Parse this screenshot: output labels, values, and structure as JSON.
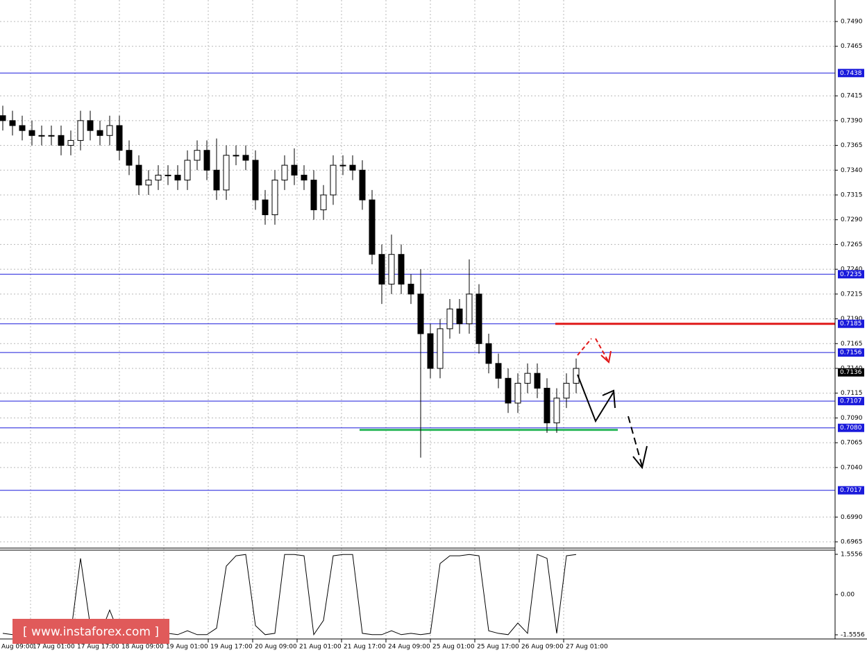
{
  "chart_data": {
    "type": "candlestick",
    "ylim": [
      0.69587,
      0.75117
    ],
    "yticks": [
      {
        "value": 0.749,
        "label": "0.7490"
      },
      0.7465,
      0.7415,
      {
        "value": 0.739,
        "label": "0.7390"
      },
      0.7365,
      {
        "value": 0.734,
        "label": "0.7340"
      },
      0.7315,
      {
        "value": 0.729,
        "label": "0.7290"
      },
      0.7265,
      {
        "value": 0.724,
        "label": "0.7240"
      },
      0.7215,
      {
        "value": 0.719,
        "label": "0.7190"
      },
      0.7165,
      {
        "value": 0.714,
        "label": "0.7140"
      },
      0.7115,
      {
        "value": 0.709,
        "label": "0.7090"
      },
      0.7065,
      {
        "value": 0.704,
        "label": "0.7040"
      },
      {
        "value": 0.699,
        "label": "0.6990"
      },
      0.6965
    ],
    "grid": true,
    "time_labels": [
      "Aug 09:00",
      "17 Aug 01:00",
      "17 Aug 17:00",
      "18 Aug 09:00",
      "19 Aug 01:00",
      "19 Aug 17:00",
      "20 Aug 09:00",
      "21 Aug 01:00",
      "21 Aug 17:00",
      "24 Aug 09:00",
      "25 Aug 01:00",
      "25 Aug 17:00",
      "26 Aug 09:00",
      "27 Aug 01:00"
    ],
    "open": [
      0.7395,
      0.739,
      0.7385,
      0.738,
      0.7375,
      0.7375,
      0.7375,
      0.7365,
      0.737,
      0.739,
      0.738,
      0.7375,
      0.7385,
      0.736,
      0.7345,
      0.7325,
      0.733,
      0.7335,
      0.7335,
      0.733,
      0.735,
      0.736,
      0.734,
      0.732,
      0.7355,
      0.7355,
      0.735,
      0.731,
      0.7295,
      0.733,
      0.7345,
      0.7335,
      0.733,
      0.73,
      0.7315,
      0.7345,
      0.7345,
      0.734,
      0.731,
      0.7255,
      0.7225,
      0.7255,
      0.7225,
      0.7215,
      0.7175,
      0.714,
      0.718,
      0.72,
      0.7185,
      0.7215,
      0.7165,
      0.7145,
      0.713,
      0.7105,
      0.7125,
      0.7135,
      0.712,
      0.7085,
      0.711,
      0.7125
    ],
    "high": [
      0.7405,
      0.74,
      0.7395,
      0.739,
      0.7385,
      0.7385,
      0.7385,
      0.738,
      0.74,
      0.74,
      0.739,
      0.7395,
      0.7395,
      0.737,
      0.7355,
      0.734,
      0.7345,
      0.7345,
      0.7345,
      0.736,
      0.737,
      0.737,
      0.7372,
      0.7365,
      0.7365,
      0.7365,
      0.736,
      0.732,
      0.734,
      0.7355,
      0.7362,
      0.7345,
      0.734,
      0.7325,
      0.7355,
      0.7355,
      0.7355,
      0.735,
      0.732,
      0.7265,
      0.7275,
      0.7265,
      0.7235,
      0.724,
      0.7185,
      0.719,
      0.721,
      0.721,
      0.725,
      0.7225,
      0.7175,
      0.7155,
      0.714,
      0.7135,
      0.7145,
      0.7145,
      0.713,
      0.712,
      0.7135,
      0.715
    ],
    "low": [
      0.738,
      0.7375,
      0.737,
      0.7365,
      0.7365,
      0.7365,
      0.7355,
      0.7355,
      0.736,
      0.737,
      0.7365,
      0.7365,
      0.735,
      0.7335,
      0.7315,
      0.7315,
      0.732,
      0.7325,
      0.732,
      0.732,
      0.734,
      0.733,
      0.731,
      0.731,
      0.7345,
      0.734,
      0.73,
      0.7285,
      0.7285,
      0.732,
      0.7325,
      0.732,
      0.729,
      0.729,
      0.7305,
      0.7335,
      0.733,
      0.73,
      0.7245,
      0.7205,
      0.7215,
      0.7215,
      0.7205,
      0.705,
      0.713,
      0.713,
      0.717,
      0.7175,
      0.7175,
      0.7155,
      0.7135,
      0.712,
      0.7095,
      0.7095,
      0.7115,
      0.711,
      0.7075,
      0.7075,
      0.71,
      0.7115
    ],
    "close": [
      0.739,
      0.7385,
      0.738,
      0.7375,
      0.7375,
      0.7375,
      0.7365,
      0.737,
      0.739,
      0.738,
      0.7375,
      0.7385,
      0.736,
      0.7345,
      0.7325,
      0.733,
      0.7335,
      0.7335,
      0.733,
      0.735,
      0.736,
      0.734,
      0.732,
      0.7355,
      0.7355,
      0.735,
      0.731,
      0.7295,
      0.733,
      0.7345,
      0.7335,
      0.733,
      0.73,
      0.7315,
      0.7345,
      0.7345,
      0.734,
      0.731,
      0.7255,
      0.7225,
      0.7255,
      0.7225,
      0.7215,
      0.7175,
      0.714,
      0.718,
      0.72,
      0.7185,
      0.7215,
      0.7165,
      0.7145,
      0.713,
      0.7105,
      0.7125,
      0.7135,
      0.712,
      0.7085,
      0.711,
      0.7125,
      0.714
    ],
    "levels": {
      "values": [
        0.7438,
        0.7235,
        0.7185,
        0.7156,
        0.7107,
        0.708,
        0.7017
      ],
      "value_labels": [
        "0.7438",
        "0.7235",
        "0.7185",
        "0.7156",
        "0.7107",
        "0.7080",
        "0.7017"
      ],
      "color": "#1a1adb"
    },
    "current_price": {
      "value": 0.7136,
      "label": "0.7136"
    },
    "resistance": {
      "value": 0.7185,
      "color": "#e01818"
    },
    "support": {
      "value": 0.7078,
      "color": "#2eb85c"
    },
    "indicator": {
      "ylim": [
        -1.7165,
        1.7165
      ],
      "yticks": [
        1.5556,
        {
          "value": 0,
          "label": "0.00"
        },
        -1.5556
      ],
      "values": [
        -1.5,
        -1.55,
        -1.3,
        -1.55,
        -1.5,
        -1.55,
        -1.45,
        -1.5,
        1.4,
        -1.2,
        -1.55,
        -0.6,
        -1.55,
        -1.55,
        -1.5,
        -1.55,
        -1.55,
        -1.5,
        -1.55,
        -1.4,
        -1.55,
        -1.55,
        -1.3,
        1.1,
        1.5,
        1.55,
        -1.2,
        -1.55,
        -1.5,
        1.55,
        1.55,
        1.5,
        -1.55,
        -1.0,
        1.5,
        1.55,
        1.55,
        -1.5,
        -1.55,
        -1.55,
        -1.4,
        -1.55,
        -1.5,
        -1.55,
        -1.5,
        1.2,
        1.5,
        1.5,
        1.55,
        1.5,
        -1.4,
        -1.5,
        -1.55,
        -1.1,
        -1.5,
        1.55,
        1.4,
        -1.5,
        1.5,
        1.55
      ]
    },
    "watermark": "[ www.instaforex.com ]"
  }
}
